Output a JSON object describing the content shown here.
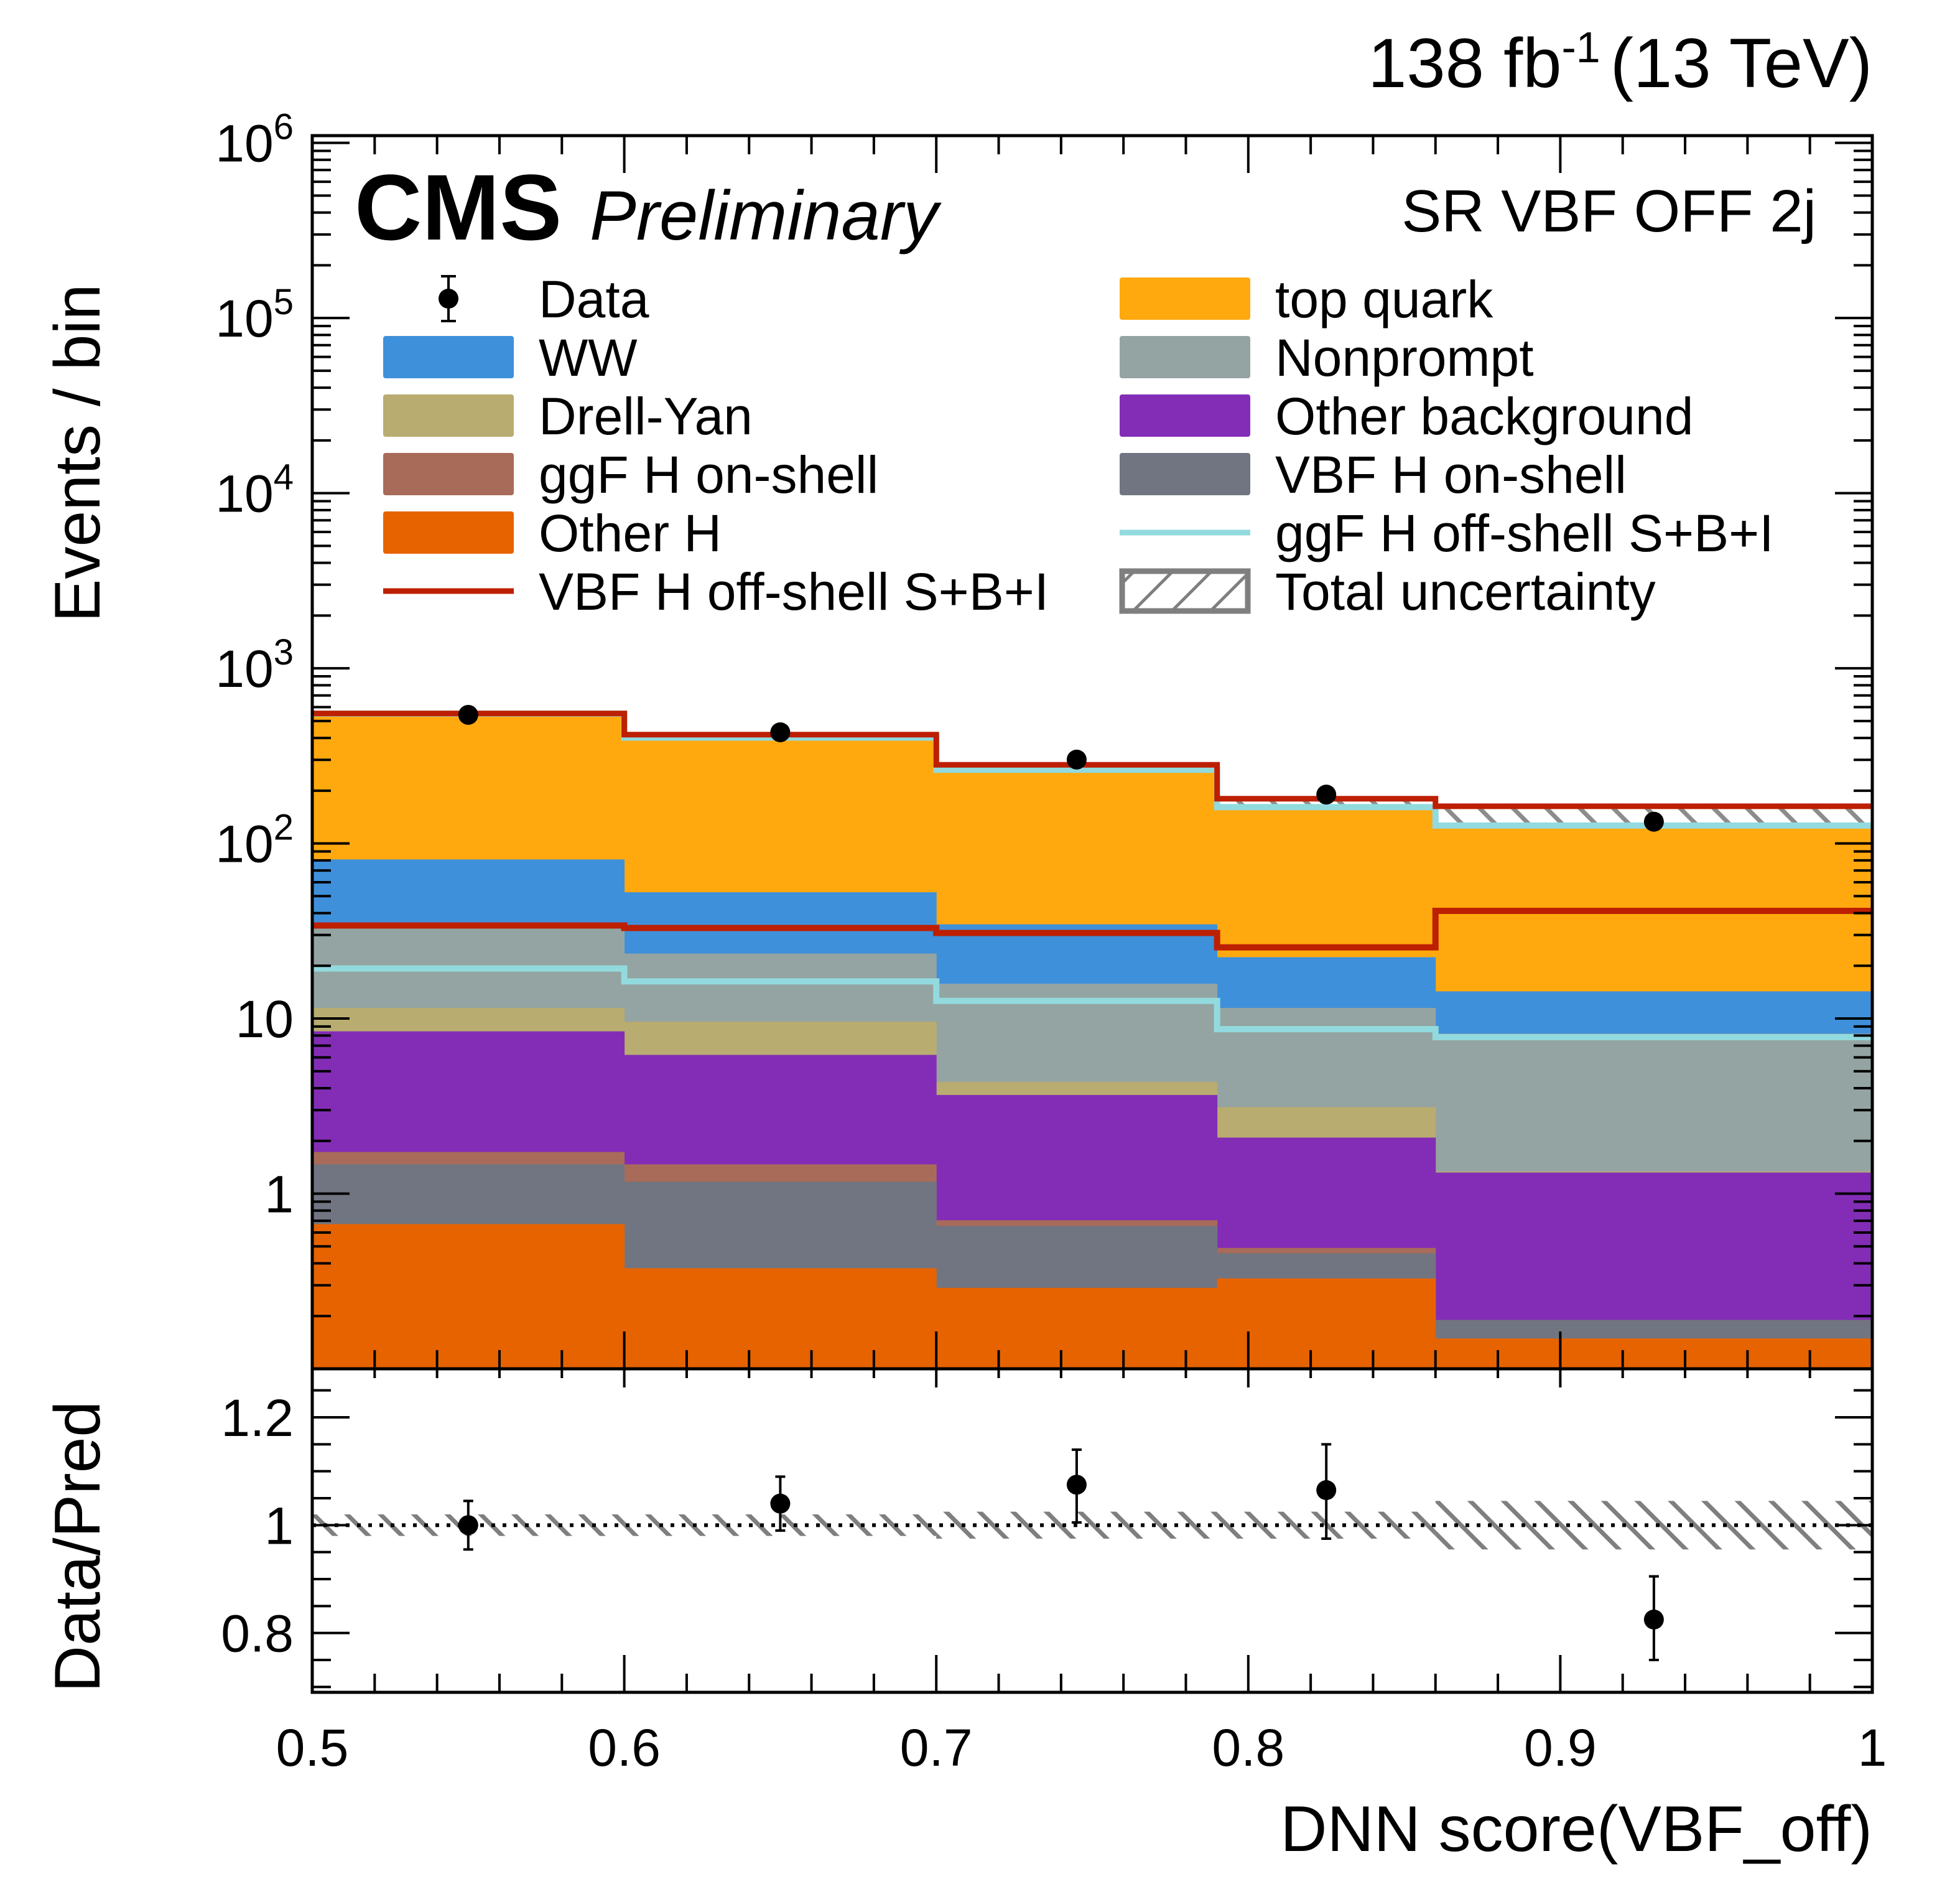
{
  "header": {
    "experiment": "CMS",
    "status": "Preliminary",
    "lumi": "138 fb",
    "lumi_sup": "-1",
    "energy": "(13 TeV)",
    "region": "SR VBF OFF 2j"
  },
  "legend": {
    "left": [
      {
        "key": "data",
        "label": "Data",
        "style": "marker"
      },
      {
        "key": "ww",
        "label": "WW",
        "style": "fill"
      },
      {
        "key": "dy",
        "label": "Drell-Yan",
        "style": "fill"
      },
      {
        "key": "ggf_on",
        "label": "ggF H on-shell",
        "style": "fill"
      },
      {
        "key": "other_h",
        "label": "Other H",
        "style": "fill"
      },
      {
        "key": "vbf_sbi",
        "label": "VBF H off-shell S+B+I",
        "style": "line"
      }
    ],
    "right": [
      {
        "key": "top",
        "label": "top quark",
        "style": "fill"
      },
      {
        "key": "nonprompt",
        "label": "Nonprompt",
        "style": "fill"
      },
      {
        "key": "other_bkg",
        "label": "Other background",
        "style": "fill"
      },
      {
        "key": "vbf_on",
        "label": "VBF H on-shell",
        "style": "fill"
      },
      {
        "key": "ggf_sbi",
        "label": "ggF H off-shell S+B+I",
        "style": "line"
      },
      {
        "key": "unc",
        "label": "Total uncertainty",
        "style": "hatch"
      }
    ]
  },
  "colors": {
    "top": "#ffa90e",
    "ww": "#3f90da",
    "nonprompt": "#94a4a2",
    "dy": "#b9ac70",
    "other_bkg": "#832db6",
    "ggf_on": "#a96b59",
    "vbf_on": "#717581",
    "other_h": "#e76300",
    "vbf_sbi": "#bd1f01",
    "ggf_sbi": "#92dadd",
    "unc": "#7f7f7f",
    "data": "#000000"
  },
  "chart_data": [
    {
      "type": "bar",
      "subtype": "stacked-histogram",
      "title": "SR VBF OFF 2j",
      "xlabel": "DNN score(VBF_off)",
      "ylabel": "Events / bin",
      "yscale": "log",
      "xlim": [
        0.5,
        1.0
      ],
      "ylim": [
        0.1,
        1100000
      ],
      "bin_edges": [
        0.5,
        0.6,
        0.7,
        0.79,
        0.86,
        1.0
      ],
      "yticks": [
        {
          "value": 1,
          "label": "1"
        },
        {
          "value": 10,
          "label": "10"
        },
        {
          "value": 100,
          "label": "10",
          "sup": "2"
        },
        {
          "value": 1000,
          "label": "10",
          "sup": "3"
        },
        {
          "value": 10000,
          "label": "10",
          "sup": "4"
        },
        {
          "value": 100000,
          "label": "10",
          "sup": "5"
        },
        {
          "value": 1000000,
          "label": "10",
          "sup": "6"
        }
      ],
      "stack_order_bottom_to_top": [
        "other_h",
        "vbf_on",
        "ggf_on",
        "other_bkg",
        "dy",
        "nonprompt",
        "ww",
        "top"
      ],
      "stack_cumulative_tops": {
        "other_h": [
          0.67,
          0.375,
          0.29,
          0.328,
          0.149
        ],
        "vbf_on": [
          1.47,
          1.17,
          0.655,
          0.457,
          0.19
        ],
        "ggf_on": [
          1.73,
          1.47,
          0.705,
          0.49,
          0.19
        ],
        "other_bkg": [
          8.45,
          6.2,
          3.66,
          2.09,
          1.32
        ],
        "dy": [
          11.5,
          9.6,
          4.35,
          3.12,
          1.34
        ],
        "nonprompt": [
          34.5,
          23.5,
          15.8,
          11.5,
          8.2
        ],
        "ww": [
          81,
          52.6,
          34.5,
          22.4,
          14.3
        ],
        "top": [
          540,
          394,
          258,
          158,
          124
        ]
      },
      "lines": {
        "vbf_sbi": [
          34,
          32.9,
          30.8,
          25.5,
          41.2
        ],
        "ggf_sbi": [
          19.3,
          16.3,
          12.6,
          8.7,
          7.83
        ]
      },
      "total_with_sbi": [
        552,
        418,
        281,
        180,
        163
      ],
      "data": {
        "x": [
          0.55,
          0.65,
          0.745,
          0.825,
          0.93
        ],
        "y": [
          542,
          431,
          301,
          190,
          133
        ]
      }
    },
    {
      "type": "scatter",
      "subtype": "ratio",
      "xlabel": "DNN score(VBF_off)",
      "ylabel": "Data/Pred",
      "xlim": [
        0.5,
        1.0
      ],
      "ylim": [
        0.69,
        1.29
      ],
      "xticks": [
        "0.5",
        "0.6",
        "0.7",
        "0.8",
        "0.9",
        "1"
      ],
      "xtick_values": [
        0.5,
        0.6,
        0.7,
        0.8,
        0.9,
        1.0
      ],
      "yticks": [
        {
          "value": 0.8,
          "label": "0.8"
        },
        {
          "value": 1.0,
          "label": "1"
        },
        {
          "value": 1.2,
          "label": "1.2"
        }
      ],
      "reference_line": 1.0,
      "bin_edges": [
        0.5,
        0.6,
        0.7,
        0.79,
        0.86,
        1.0
      ],
      "uncertainty_band": {
        "low": [
          0.98,
          0.98,
          0.975,
          0.975,
          0.955
        ],
        "high": [
          1.02,
          1.02,
          1.025,
          1.025,
          1.045
        ]
      },
      "points": {
        "x": [
          0.55,
          0.65,
          0.745,
          0.825,
          0.93
        ],
        "y": [
          1.0,
          1.04,
          1.075,
          1.065,
          0.825
        ],
        "err_low": [
          0.045,
          0.05,
          0.07,
          0.09,
          0.075
        ],
        "err_high": [
          0.045,
          0.05,
          0.065,
          0.085,
          0.08
        ]
      }
    }
  ]
}
